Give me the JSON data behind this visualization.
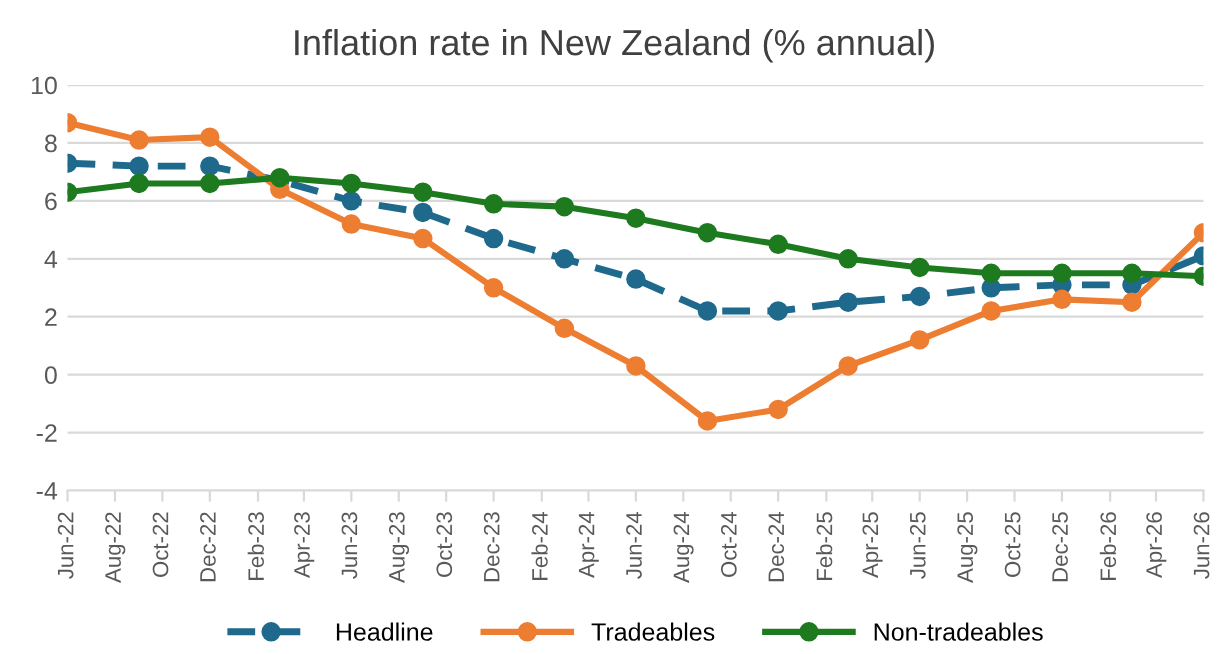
{
  "chart_data": {
    "type": "line",
    "title": "Inflation rate in New Zealand (% annual)",
    "x": [
      "2022-06",
      "2022-09",
      "2022-12",
      "2023-03",
      "2023-06",
      "2023-09",
      "2023-12",
      "2024-03",
      "2024-06",
      "2024-09",
      "2024-12",
      "2025-03",
      "2025-06",
      "2025-09",
      "2025-12",
      "2026-03",
      "2026-06"
    ],
    "series": [
      {
        "name": "Headline",
        "color": "#1f6a8c",
        "line_style": "dashed",
        "values": [
          7.3,
          7.2,
          7.2,
          6.7,
          6.0,
          5.6,
          4.7,
          4.0,
          3.3,
          2.2,
          2.2,
          2.5,
          2.7,
          3.0,
          3.1,
          3.1,
          4.1
        ]
      },
      {
        "name": "Tradeables",
        "color": "#ed7d31",
        "line_style": "solid",
        "values": [
          8.7,
          8.1,
          8.2,
          6.4,
          5.2,
          4.7,
          3.0,
          1.6,
          0.3,
          -1.6,
          -1.2,
          0.3,
          1.2,
          2.2,
          2.6,
          2.5,
          4.9
        ]
      },
      {
        "name": "Non-tradeables",
        "color": "#1e7a1e",
        "line_style": "solid",
        "values": [
          6.3,
          6.6,
          6.6,
          6.8,
          6.6,
          6.3,
          5.9,
          5.8,
          5.4,
          4.9,
          4.5,
          4.0,
          3.7,
          3.5,
          3.5,
          3.5,
          3.4
        ]
      }
    ],
    "xlim": [
      "2022-06",
      "2026-06"
    ],
    "xticks": [
      {
        "value": "2022-06",
        "label": "Jun-22"
      },
      {
        "value": "2022-08",
        "label": "Aug-22"
      },
      {
        "value": "2022-10",
        "label": "Oct-22"
      },
      {
        "value": "2022-12",
        "label": "Dec-22"
      },
      {
        "value": "2023-02",
        "label": "Feb-23"
      },
      {
        "value": "2023-04",
        "label": "Apr-23"
      },
      {
        "value": "2023-06",
        "label": "Jun-23"
      },
      {
        "value": "2023-08",
        "label": "Aug-23"
      },
      {
        "value": "2023-10",
        "label": "Oct-23"
      },
      {
        "value": "2023-12",
        "label": "Dec-23"
      },
      {
        "value": "2024-02",
        "label": "Feb-24"
      },
      {
        "value": "2024-04",
        "label": "Apr-24"
      },
      {
        "value": "2024-06",
        "label": "Jun-24"
      },
      {
        "value": "2024-08",
        "label": "Aug-24"
      },
      {
        "value": "2024-10",
        "label": "Oct-24"
      },
      {
        "value": "2024-12",
        "label": "Dec-24"
      },
      {
        "value": "2025-02",
        "label": "Feb-25"
      },
      {
        "value": "2025-04",
        "label": "Apr-25"
      },
      {
        "value": "2025-06",
        "label": "Jun-25"
      },
      {
        "value": "2025-08",
        "label": "Aug-25"
      },
      {
        "value": "2025-10",
        "label": "Oct-25"
      },
      {
        "value": "2025-12",
        "label": "Dec-25"
      },
      {
        "value": "2026-02",
        "label": "Feb-26"
      },
      {
        "value": "2026-04",
        "label": "Apr-26"
      },
      {
        "value": "2026-06",
        "label": "Jun-26"
      }
    ],
    "ylim": [
      -4,
      10
    ],
    "yticks": [
      -4,
      -2,
      0,
      2,
      4,
      6,
      8,
      10
    ],
    "grid": "y",
    "legend": "bottom",
    "marker": "circle"
  }
}
